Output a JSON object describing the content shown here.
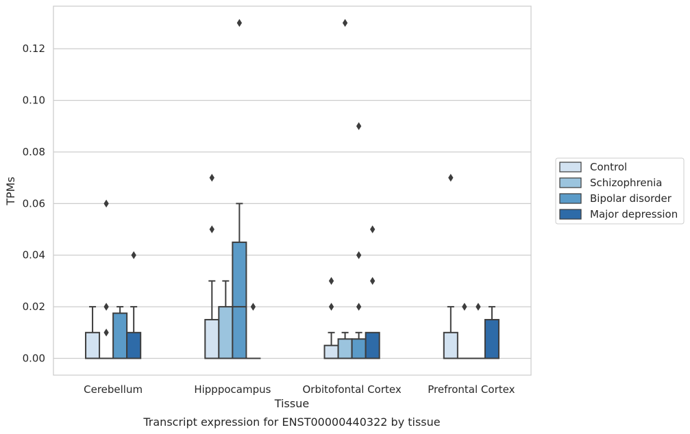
{
  "chart_data": {
    "type": "box",
    "xlabel": "Tissue",
    "ylabel": "TPMs",
    "caption": "Transcript expression for ENST00000440322 by tissue",
    "categories": [
      "Cerebellum",
      "Hipppocampus",
      "Orbitofontal Cortex",
      "Prefrontal Cortex"
    ],
    "ylim": [
      -0.0065,
      0.1365
    ],
    "yticks": [
      0.0,
      0.02,
      0.04,
      0.06,
      0.08,
      0.1,
      0.12
    ],
    "ytick_labels": [
      "0.00",
      "0.02",
      "0.04",
      "0.06",
      "0.08",
      "0.10",
      "0.12"
    ],
    "grid": true,
    "legend_position": "right",
    "series": [
      {
        "name": "Control",
        "color": "#d2e2f1",
        "boxes": [
          {
            "q1": 0.0,
            "median": 0.0,
            "q3": 0.01,
            "whisker_low": 0.0,
            "whisker_high": 0.02,
            "outliers": []
          },
          {
            "q1": 0.0,
            "median": 0.0,
            "q3": 0.015,
            "whisker_low": 0.0,
            "whisker_high": 0.03,
            "outliers": [
              0.05,
              0.07
            ]
          },
          {
            "q1": 0.0,
            "median": 0.0,
            "q3": 0.005,
            "whisker_low": 0.0,
            "whisker_high": 0.01,
            "outliers": [
              0.02,
              0.03
            ]
          },
          {
            "q1": 0.0,
            "median": 0.0,
            "q3": 0.01,
            "whisker_low": 0.0,
            "whisker_high": 0.02,
            "outliers": [
              0.07
            ]
          }
        ]
      },
      {
        "name": "Schizophrenia",
        "color": "#9bc4de",
        "boxes": [
          {
            "q1": 0.0,
            "median": 0.0,
            "q3": 0.0,
            "whisker_low": 0.0,
            "whisker_high": 0.0,
            "outliers": [
              0.01,
              0.02,
              0.06
            ]
          },
          {
            "q1": 0.0,
            "median": 0.0,
            "q3": 0.02,
            "whisker_low": 0.0,
            "whisker_high": 0.03,
            "outliers": []
          },
          {
            "q1": 0.0,
            "median": 0.0,
            "q3": 0.0075,
            "whisker_low": 0.0,
            "whisker_high": 0.01,
            "outliers": [
              0.13
            ]
          },
          {
            "q1": 0.0,
            "median": 0.0,
            "q3": 0.0,
            "whisker_low": 0.0,
            "whisker_high": 0.0,
            "outliers": [
              0.02
            ]
          }
        ]
      },
      {
        "name": "Bipolar disorder",
        "color": "#5b9bc8",
        "boxes": [
          {
            "q1": 0.0,
            "median": 0.0,
            "q3": 0.0175,
            "whisker_low": 0.0,
            "whisker_high": 0.02,
            "outliers": []
          },
          {
            "q1": 0.0,
            "median": 0.02,
            "q3": 0.045,
            "whisker_low": 0.0,
            "whisker_high": 0.06,
            "outliers": [
              0.13
            ]
          },
          {
            "q1": 0.0,
            "median": 0.0,
            "q3": 0.0075,
            "whisker_low": 0.0,
            "whisker_high": 0.01,
            "outliers": [
              0.02,
              0.04,
              0.09
            ]
          },
          {
            "q1": 0.0,
            "median": 0.0,
            "q3": 0.0,
            "whisker_low": 0.0,
            "whisker_high": 0.0,
            "outliers": [
              0.02
            ]
          }
        ]
      },
      {
        "name": "Major depression",
        "color": "#2e6ba8",
        "boxes": [
          {
            "q1": 0.0,
            "median": 0.0,
            "q3": 0.01,
            "whisker_low": 0.0,
            "whisker_high": 0.02,
            "outliers": [
              0.04
            ]
          },
          {
            "q1": 0.0,
            "median": 0.0,
            "q3": 0.0,
            "whisker_low": 0.0,
            "whisker_high": 0.0,
            "outliers": [
              0.02
            ]
          },
          {
            "q1": 0.0,
            "median": 0.0,
            "q3": 0.01,
            "whisker_low": 0.0,
            "whisker_high": 0.01,
            "outliers": [
              0.03,
              0.05
            ]
          },
          {
            "q1": 0.0,
            "median": 0.0,
            "q3": 0.015,
            "whisker_low": 0.0,
            "whisker_high": 0.02,
            "outliers": []
          }
        ]
      }
    ]
  }
}
